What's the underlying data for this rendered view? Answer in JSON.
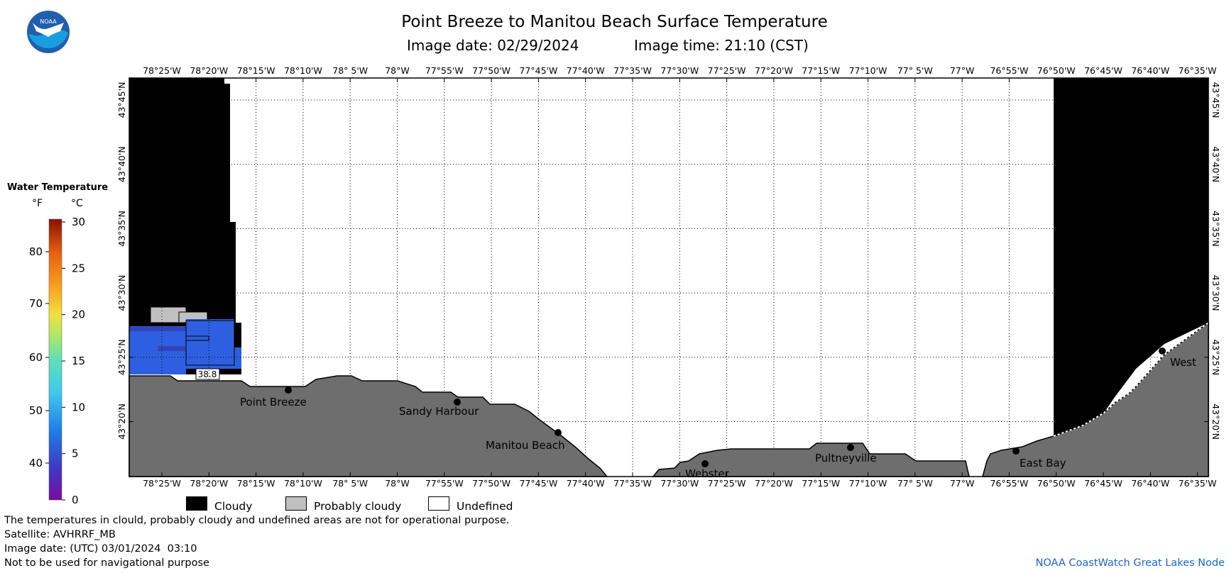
{
  "header": {
    "title": "Point Breeze to Manitou Beach Surface Temperature",
    "image_date_label": "Image date: 02/29/2024",
    "image_time_label": "Image time: 21:10 (CST)"
  },
  "logo": {
    "text": "NOAA"
  },
  "colorbar": {
    "title": "Water Temperature",
    "f_header": "°F",
    "c_header": "°C",
    "f_ticks": [
      "80",
      "70",
      "60",
      "50",
      "40"
    ],
    "c_ticks": [
      "30",
      "25",
      "20",
      "15",
      "10",
      "5",
      "0"
    ]
  },
  "axes": {
    "lon_top": [
      "78°25'W",
      "78°20'W",
      "78°15'W",
      "78°10'W",
      "78° 5'W",
      "78°W",
      "77°55'W",
      "77°50'W",
      "77°45'W",
      "77°40'W",
      "77°35'W",
      "77°30'W",
      "77°25'W",
      "77°20'W",
      "77°15'W",
      "77°10'W",
      "77° 5'W",
      "77°W",
      "76°55'W",
      "76°50'W",
      "76°45'W",
      "76°40'W",
      "76°35'W"
    ],
    "lon_bottom": [
      "78°25'W",
      "78°20'W",
      "78°15'W",
      "78°10'W",
      "78° 5'W",
      "78°W",
      "77°55'W",
      "77°50'W",
      "77°45'W",
      "77°40'W",
      "77°35'W",
      "77°30'W",
      "77°25'W",
      "77°20'W",
      "77°15'W",
      "77°10'W",
      "77° 5'W",
      "77°W",
      "76°55'W",
      "76°50'W",
      "76°45'W",
      "76°40'W",
      "76°35'W"
    ],
    "lat": [
      "43°45'N",
      "43°40'N",
      "43°35'N",
      "43°30'N",
      "43°25'N",
      "43°20'N"
    ]
  },
  "places": [
    {
      "name": "Point Breeze"
    },
    {
      "name": "Sandy Harbour"
    },
    {
      "name": "Manitou Beach"
    },
    {
      "name": "Webster"
    },
    {
      "name": "Pultneyville"
    },
    {
      "name": "East Bay"
    },
    {
      "name": "West"
    }
  ],
  "annotations": {
    "temp_value": "38.8"
  },
  "legend": {
    "cloudy": "Cloudy",
    "probably_cloudy": "Probably cloudy",
    "undefined": "Undefined"
  },
  "footer": {
    "disclaimer": "The temperatures in clould, probably cloudy and undefined areas are not for operational purpose.",
    "satellite": "Satellite: AVHRRF_MB",
    "utc_date": "Image date: (UTC) 03/01/2024  03:10",
    "nav_warning": "Not to be used for navigational purpose",
    "credit": "NOAA CoastWatch Great Lakes Node"
  },
  "colors": {
    "cloud": "#000000",
    "probably_cloudy": "#c0c0c0",
    "land": "#6e6e6e",
    "water_temp": "#2e5fe0",
    "credit": "#1a66cc"
  }
}
